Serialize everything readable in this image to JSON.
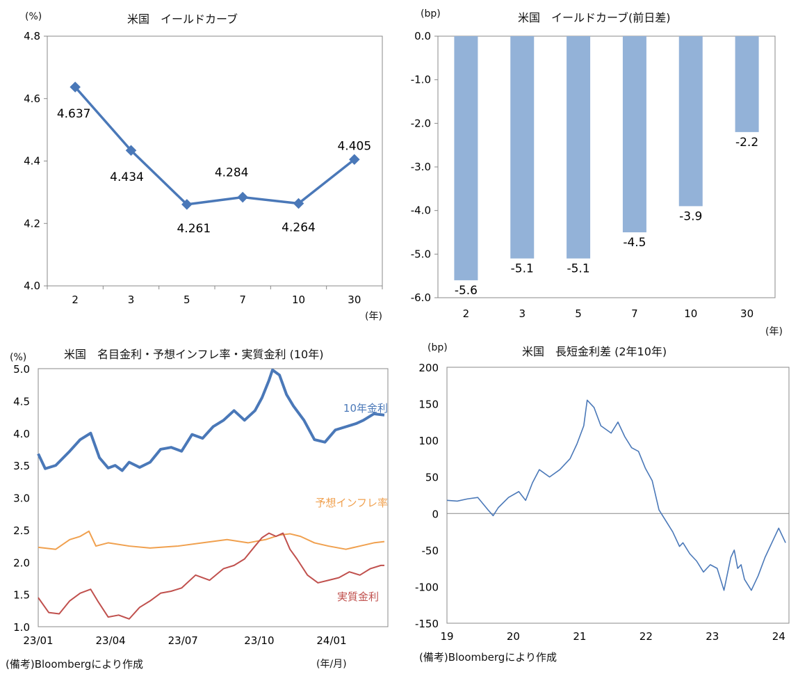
{
  "chart_data": [
    {
      "type": "line",
      "title": "米国　イールドカーブ",
      "ylabel": "(%)",
      "xlabel": "(年)",
      "categories": [
        "2",
        "3",
        "5",
        "7",
        "10",
        "30"
      ],
      "values": [
        4.637,
        4.434,
        4.261,
        4.284,
        4.264,
        4.405
      ],
      "data_labels": [
        "4.637",
        "4.434",
        "4.261",
        "4.284",
        "4.264",
        "4.405"
      ],
      "ylim": [
        4.0,
        4.8
      ],
      "yticks": [
        "4.0",
        "4.2",
        "4.4",
        "4.6",
        "4.8"
      ],
      "color": "#4a78b8"
    },
    {
      "type": "bar",
      "title": "米国　イールドカーブ(前日差)",
      "ylabel": "(bp)",
      "xlabel": "(年)",
      "categories": [
        "2",
        "3",
        "5",
        "7",
        "10",
        "30"
      ],
      "values": [
        -5.6,
        -5.1,
        -5.1,
        -4.5,
        -3.9,
        -2.2
      ],
      "data_labels": [
        "-5.6",
        "-5.1",
        "-5.1",
        "-4.5",
        "-3.9",
        "-2.2"
      ],
      "ylim": [
        -6.0,
        0.0
      ],
      "yticks": [
        "0.0",
        "-1.0",
        "-2.0",
        "-3.0",
        "-4.0",
        "-5.0",
        "-6.0"
      ],
      "color": "#93b2d8"
    },
    {
      "type": "line",
      "title": "米国　名目金利・予想インフレ率・実質金利 (10年)",
      "ylabel": "(%)",
      "xlabel": "(年/月)",
      "note": "(備考)Bloombergにより作成",
      "ylim": [
        1.0,
        5.0
      ],
      "yticks": [
        "1.0",
        "1.5",
        "2.0",
        "2.5",
        "3.0",
        "3.5",
        "4.0",
        "4.5",
        "5.0"
      ],
      "xticks": [
        "23/01",
        "23/04",
        "23/07",
        "23/10",
        "24/01"
      ],
      "series": [
        {
          "name": "10年金利",
          "color": "#4a78b8",
          "x": [
            0,
            0.02,
            0.05,
            0.09,
            0.12,
            0.15,
            0.175,
            0.2,
            0.22,
            0.24,
            0.26,
            0.29,
            0.32,
            0.35,
            0.38,
            0.41,
            0.44,
            0.47,
            0.5,
            0.53,
            0.56,
            0.59,
            0.62,
            0.64,
            0.66,
            0.67,
            0.69,
            0.71,
            0.73,
            0.76,
            0.79,
            0.82,
            0.85,
            0.88,
            0.91,
            0.93,
            0.96,
            0.99
          ],
          "values": [
            3.68,
            3.45,
            3.5,
            3.72,
            3.9,
            4.0,
            3.62,
            3.46,
            3.5,
            3.42,
            3.55,
            3.47,
            3.55,
            3.75,
            3.78,
            3.72,
            3.98,
            3.92,
            4.1,
            4.2,
            4.35,
            4.2,
            4.35,
            4.55,
            4.82,
            4.98,
            4.9,
            4.6,
            4.42,
            4.2,
            3.9,
            3.86,
            4.05,
            4.1,
            4.15,
            4.2,
            4.3,
            4.28
          ]
        },
        {
          "name": "予想インフレ率",
          "color": "#f0a04e",
          "x": [
            0,
            0.05,
            0.09,
            0.12,
            0.145,
            0.165,
            0.2,
            0.26,
            0.32,
            0.4,
            0.47,
            0.54,
            0.6,
            0.65,
            0.69,
            0.72,
            0.75,
            0.79,
            0.83,
            0.88,
            0.92,
            0.96,
            0.99
          ],
          "values": [
            2.23,
            2.2,
            2.35,
            2.4,
            2.48,
            2.25,
            2.3,
            2.25,
            2.22,
            2.25,
            2.3,
            2.35,
            2.3,
            2.35,
            2.42,
            2.44,
            2.4,
            2.3,
            2.25,
            2.2,
            2.25,
            2.3,
            2.32
          ]
        },
        {
          "name": "実質金利",
          "color": "#c0504d",
          "x": [
            0,
            0.03,
            0.06,
            0.09,
            0.12,
            0.15,
            0.17,
            0.2,
            0.23,
            0.26,
            0.29,
            0.32,
            0.35,
            0.38,
            0.41,
            0.45,
            0.49,
            0.53,
            0.56,
            0.59,
            0.62,
            0.64,
            0.66,
            0.68,
            0.7,
            0.72,
            0.74,
            0.77,
            0.8,
            0.83,
            0.86,
            0.89,
            0.92,
            0.95,
            0.98,
            0.99
          ],
          "values": [
            1.45,
            1.22,
            1.2,
            1.4,
            1.52,
            1.58,
            1.4,
            1.15,
            1.18,
            1.12,
            1.3,
            1.4,
            1.52,
            1.55,
            1.6,
            1.8,
            1.72,
            1.9,
            1.95,
            2.05,
            2.25,
            2.38,
            2.45,
            2.4,
            2.45,
            2.2,
            2.05,
            1.8,
            1.68,
            1.72,
            1.76,
            1.85,
            1.8,
            1.9,
            1.95,
            1.95
          ]
        }
      ]
    },
    {
      "type": "line",
      "title": "米国　長短金利差 (2年10年)",
      "ylabel": "(bp)",
      "note": "(備考)Bloombergにより作成",
      "ylim": [
        -150,
        200
      ],
      "yticks": [
        "200",
        "150",
        "100",
        "50",
        "0",
        "-50",
        "-100",
        "-150"
      ],
      "xticks": [
        "19",
        "20",
        "21",
        "22",
        "23",
        "24"
      ],
      "series": [
        {
          "color": "#4a78b8",
          "x": [
            0,
            0.03,
            0.06,
            0.09,
            0.12,
            0.135,
            0.15,
            0.18,
            0.21,
            0.23,
            0.25,
            0.27,
            0.3,
            0.33,
            0.36,
            0.38,
            0.4,
            0.41,
            0.43,
            0.45,
            0.48,
            0.5,
            0.52,
            0.54,
            0.56,
            0.58,
            0.6,
            0.62,
            0.64,
            0.66,
            0.68,
            0.69,
            0.71,
            0.73,
            0.75,
            0.77,
            0.79,
            0.81,
            0.83,
            0.84,
            0.85,
            0.86,
            0.87,
            0.89,
            0.91,
            0.93,
            0.95,
            0.97,
            0.99
          ],
          "values": [
            18,
            17,
            20,
            22,
            5,
            -3,
            8,
            22,
            30,
            18,
            42,
            60,
            50,
            60,
            75,
            95,
            120,
            155,
            145,
            120,
            110,
            125,
            105,
            90,
            85,
            62,
            45,
            5,
            -10,
            -25,
            -45,
            -40,
            -55,
            -65,
            -80,
            -70,
            -75,
            -105,
            -60,
            -50,
            -75,
            -70,
            -90,
            -105,
            -85,
            -60,
            -40,
            -20,
            -40
          ]
        }
      ]
    }
  ]
}
